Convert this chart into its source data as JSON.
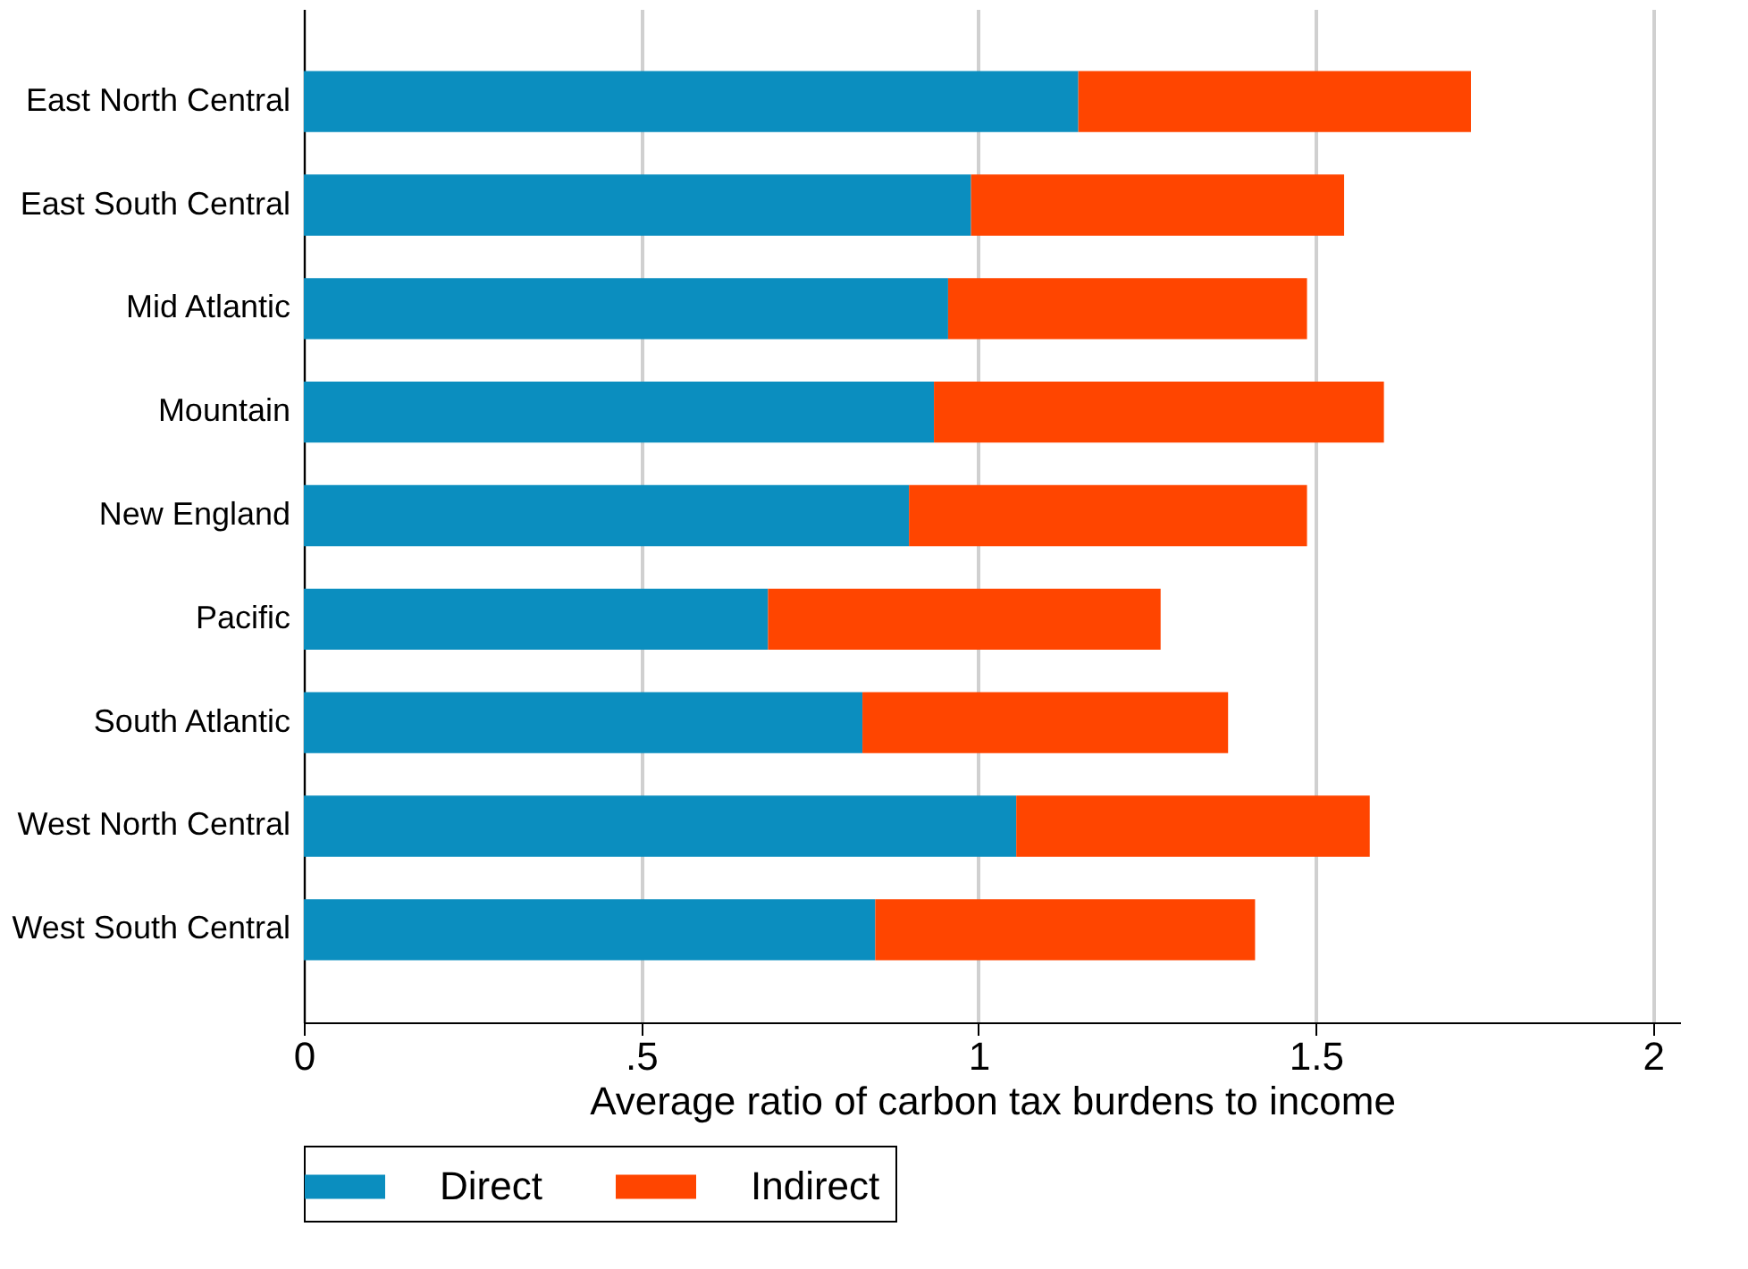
{
  "chart_data": {
    "type": "bar",
    "orientation": "horizontal",
    "stacked": true,
    "xlabel": "Average ratio of carbon tax burdens to income",
    "categories": [
      "East North Central",
      "East South Central",
      "Mid Atlantic",
      "Mountain",
      "New England",
      "Pacific",
      "South Atlantic",
      "West North Central",
      "West South Central"
    ],
    "series": [
      {
        "name": "Direct",
        "color": "#0b8ebf",
        "values": [
          1.148,
          0.989,
          0.955,
          0.934,
          0.897,
          0.688,
          0.828,
          1.056,
          0.847
        ]
      },
      {
        "name": "Indirect",
        "color": "#ff4500",
        "values": [
          0.582,
          0.553,
          0.532,
          0.667,
          0.59,
          0.582,
          0.542,
          0.524,
          0.563
        ]
      }
    ],
    "xlim": [
      0,
      2.04
    ],
    "xticks": [
      0,
      {
        "value": 0.5,
        "label": ".5"
      },
      1,
      {
        "value": 1.5,
        "label": "1.5"
      },
      2
    ],
    "grid": "x",
    "legend": "bottom"
  }
}
